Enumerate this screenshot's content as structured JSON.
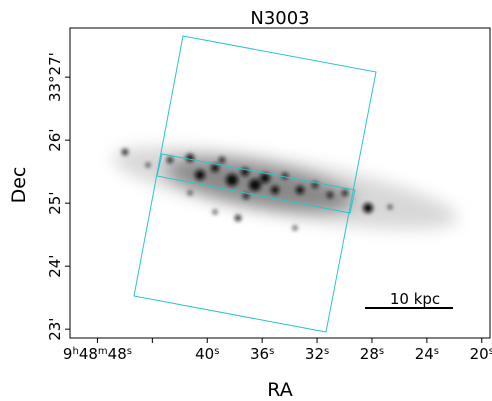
{
  "chart_data": {
    "type": "image",
    "title": "N3003",
    "xlabel": "RA",
    "ylabel": "Dec",
    "xlim": [
      50,
      19.4
    ],
    "ylim": [
      22.86,
      27.78
    ],
    "xticks": [
      {
        "value": 48,
        "label": "9h48m48s"
      },
      {
        "value": 44,
        "label": null
      },
      {
        "value": 40,
        "label": "40s"
      },
      {
        "value": 36,
        "label": "36s"
      },
      {
        "value": 32,
        "label": "32s"
      },
      {
        "value": 28,
        "label": "28s"
      },
      {
        "value": 24,
        "label": "24s"
      },
      {
        "value": 20,
        "label": "20s"
      }
    ],
    "yticks": [
      {
        "value": 27,
        "label": "33°27'"
      },
      {
        "value": 26,
        "label": "26'"
      },
      {
        "value": 25,
        "label": "25'"
      },
      {
        "value": 24,
        "label": "24'"
      },
      {
        "value": 23,
        "label": "23'"
      }
    ],
    "annotation": "10 kpc",
    "overlay_color": "#2cc4cc"
  }
}
